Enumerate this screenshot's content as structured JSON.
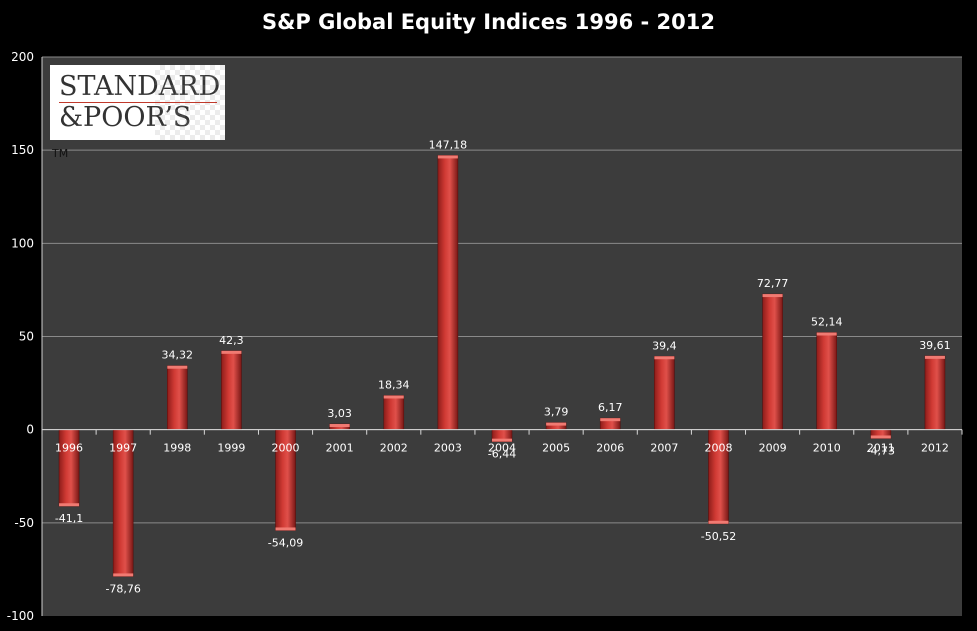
{
  "chart_data": {
    "type": "bar",
    "title": "S&P Global Equity Indices 1996 - 2012",
    "xlabel": "",
    "ylabel": "",
    "ylim": [
      -100,
      200
    ],
    "yticks": [
      -100,
      -50,
      0,
      50,
      100,
      150,
      200
    ],
    "grid": true,
    "categories": [
      "1996",
      "1997",
      "1998",
      "1999",
      "2000",
      "2001",
      "2002",
      "2003",
      "2004",
      "2005",
      "2006",
      "2007",
      "2008",
      "2009",
      "2010",
      "2011",
      "2012"
    ],
    "values": [
      -41.1,
      -78.76,
      34.32,
      42.3,
      -54.09,
      3.03,
      18.34,
      147.18,
      -6.44,
      3.79,
      6.17,
      39.4,
      -50.52,
      72.77,
      52.14,
      -4.73,
      39.61
    ],
    "labels": [
      "-41,1",
      "-78,76",
      "34,32",
      "42,3",
      "-54,09",
      "3,03",
      "18,34",
      "147,18",
      "-6,44",
      "3,79",
      "6,17",
      "39,4",
      "-50,52",
      "72,77",
      "52,14",
      "-4,73",
      "39,61"
    ],
    "colors": {
      "background": "#3c3c3c",
      "bar": "#d03a34",
      "grid": "#8a8a8a"
    }
  },
  "logo": {
    "line1": "STANDARD",
    "line2": "&POOR’S",
    "trademark": "TM"
  }
}
